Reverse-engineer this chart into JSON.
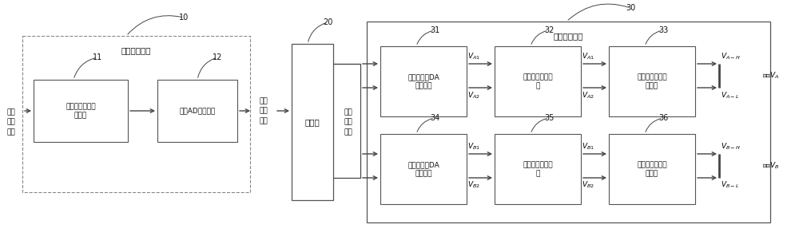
{
  "bg_color": "#ffffff",
  "box_fill": "#ffffff",
  "box_edge": "#555555",
  "line_color": "#444444",
  "text_input": "模拟\n激励\n信号",
  "text_digital_excite": "数字\n激励\n信号",
  "text_digital_diff": "数字\n差分\n信号",
  "text_box10": "信号采集电路",
  "text_box11": "第一程控信号调\n理电路",
  "text_box12": "第一AD转换电路",
  "text_box20": "控制器",
  "text_box30": "信号输出电路",
  "text_box31": "第一双通道DA\n转换电路",
  "text_box32": "第一双路滤波电\n路",
  "text_box33": "第一双路功率放\n大电路",
  "text_box34": "第二双通道DA\n转换电路",
  "text_box35": "第二双路滤波电\n路",
  "text_box36": "第二双路功率放\n大电路",
  "label_10": "10",
  "label_11": "11",
  "label_12": "12",
  "label_20": "20",
  "label_30": "30",
  "label_31": "31",
  "label_32": "32",
  "label_33": "33",
  "label_34": "34",
  "label_35": "35",
  "label_36": "36",
  "fs_main": 7.5,
  "fs_small": 6.5,
  "fs_num": 7.0,
  "fs_signal": 6.5
}
